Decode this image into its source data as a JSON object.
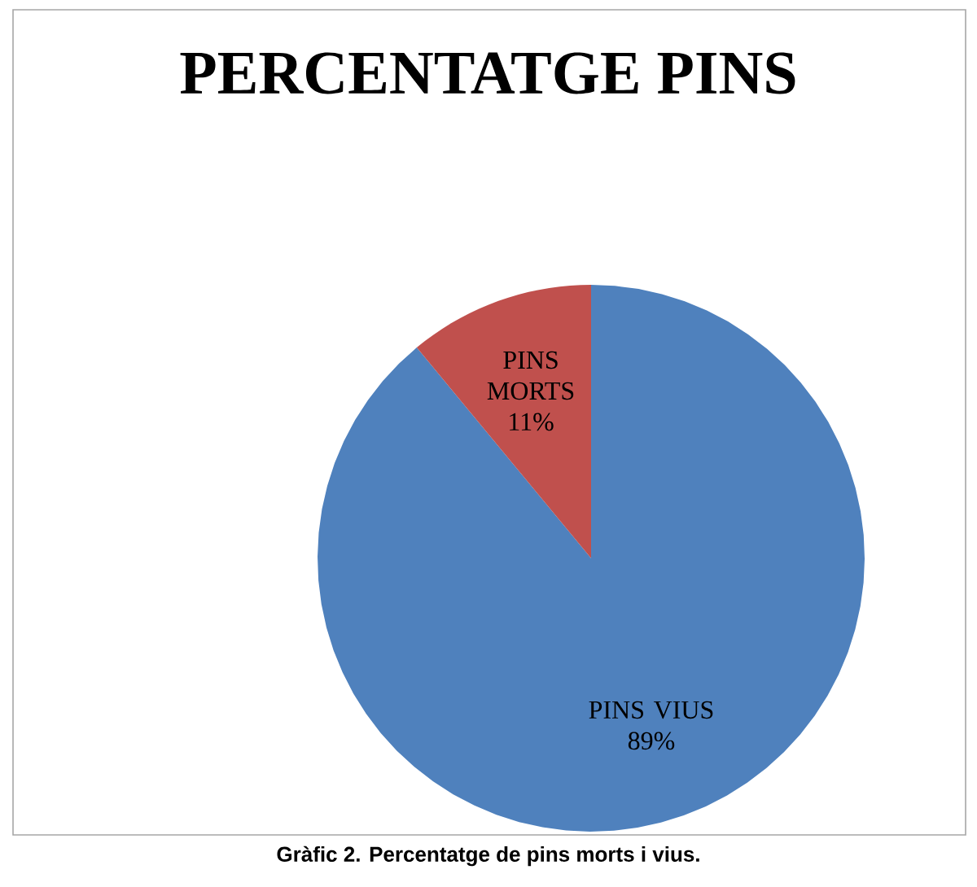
{
  "chart_data": {
    "type": "pie",
    "title": "PERCENTATGE PINS",
    "categories": [
      "PINS VIUS",
      "PINS MORTS"
    ],
    "values": [
      89,
      11
    ],
    "colors": [
      "#4f81bd",
      "#c0504d"
    ],
    "value_labels": [
      "89%",
      "11%"
    ],
    "annotations": [
      "Gràfic 2. Percentatge de pins morts i vius."
    ]
  }
}
